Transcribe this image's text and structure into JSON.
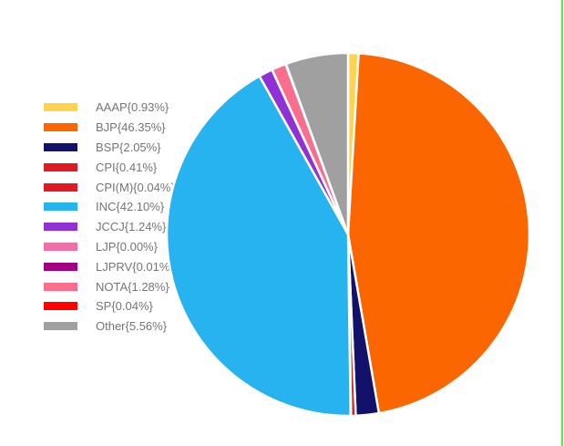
{
  "page": {
    "background": "#ffffff",
    "right_border_color": "#61E24F"
  },
  "chart_data": {
    "type": "pie",
    "title": "",
    "legend_position": "left",
    "start_angle_deg": 0,
    "direction": "clockwise",
    "slice_border_color": "#ffffff",
    "legend_text_color": "#757575",
    "series": [
      {
        "name": "AAAP",
        "label": "AAAP{0.93%}",
        "value": 0.93,
        "color": "#FFD34E"
      },
      {
        "name": "BJP",
        "label": "BJP{46.35%}",
        "value": 46.35,
        "color": "#FC6600"
      },
      {
        "name": "BSP",
        "label": "BSP{2.05%}",
        "value": 2.05,
        "color": "#12126B"
      },
      {
        "name": "CPI",
        "label": "CPI{0.41%}",
        "value": 0.41,
        "color": "#E01A20"
      },
      {
        "name": "CPI(M)",
        "label": "CPI(M){0.04%}",
        "value": 0.04,
        "color": "#E01A20"
      },
      {
        "name": "INC",
        "label": "INC{42.10%}",
        "value": 42.1,
        "color": "#26B3F0"
      },
      {
        "name": "JCCJ",
        "label": "JCCJ{1.24%}",
        "value": 1.24,
        "color": "#9030D5"
      },
      {
        "name": "LJP",
        "label": "LJP{0.00%}",
        "value": 0.0,
        "color": "#EE70A6"
      },
      {
        "name": "LJPRV",
        "label": "LJPRV{0.01%}",
        "value": 0.01,
        "color": "#A30084"
      },
      {
        "name": "NOTA",
        "label": "NOTA{1.28%}",
        "value": 1.28,
        "color": "#FA6D8D"
      },
      {
        "name": "SP",
        "label": "SP{0.04%}",
        "value": 0.04,
        "color": "#FF0000"
      },
      {
        "name": "Other",
        "label": "Other{5.56%}",
        "value": 5.56,
        "color": "#A0A0A0"
      }
    ]
  }
}
